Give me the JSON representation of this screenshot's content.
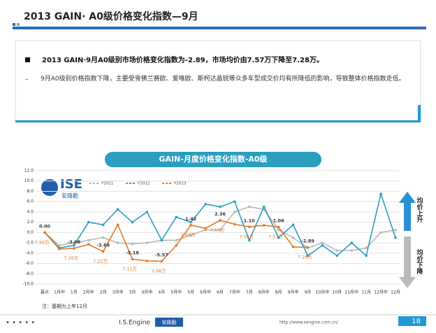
{
  "header": {
    "title": "2013 GAIN· A0级价格变化指数—9月"
  },
  "summary": {
    "headline": "2013 GAIN·9月A0级别市场价格变化指数为-2.89，市场均价由7.57万下降至7.28万。",
    "detail": "9月A0级别价格指数下降，主要受雪佛兰赛欧、爱唯欧、斯柯达晶锐等众多车型成交价均有所降低的影响，导致整体价格指数走低。"
  },
  "chart_data": {
    "type": "line",
    "title": "GAIN-月度价格变化指数-A0级",
    "categories": [
      "基点",
      "1月中",
      "1月",
      "2月中",
      "2月",
      "3月中",
      "3月",
      "4月中",
      "4月",
      "5月中",
      "5月",
      "6月中",
      "6月",
      "7月中",
      "7月",
      "8月中",
      "8月",
      "9月中",
      "9月",
      "10月中",
      "10月",
      "11月中",
      "11月",
      "12月中",
      "12月"
    ],
    "series": [
      {
        "name": "Y2011",
        "color": "#b8b8b8",
        "values": [
          0,
          -2.5,
          -2.0,
          -1.5,
          -1.0,
          -2.0,
          -2.2,
          -2.0,
          -1.5,
          -1.5,
          -0.5,
          0.5,
          0.5,
          4.0,
          5.0,
          4.5,
          0.5,
          -1.0,
          -3.0,
          -2.0,
          -3.5,
          -3.5,
          -3.0,
          0,
          0.5
        ]
      },
      {
        "name": "Y2012",
        "color": "#2a9fc0",
        "values": [
          0,
          -3.0,
          -2.5,
          2.0,
          1.5,
          4.5,
          2.0,
          4.0,
          -1.5,
          3.0,
          2.0,
          5.5,
          5.0,
          6.0,
          -1.5,
          5.0,
          -1.0,
          1.5,
          -4.5,
          -2.5,
          -4.5,
          -2.0,
          -4.5,
          7.5,
          -1.0
        ]
      },
      {
        "name": "Y2013",
        "color": "#e07b2a",
        "values": [
          0,
          -3.2,
          -3.08,
          -2.3,
          -3.69,
          1.5,
          -5.18,
          -5.5,
          -5.57,
          -2.5,
          1.42,
          0.8,
          2.36,
          1.6,
          1.1,
          1.4,
          1.06,
          -2.8,
          -2.89,
          null,
          null,
          null,
          null,
          null,
          null
        ],
        "value_labels": [
          "0.00",
          null,
          "-3.08",
          null,
          "-3.69",
          null,
          "-5.18",
          null,
          "-5.57",
          null,
          "1.42",
          null,
          "2.36",
          null,
          "1.10",
          null,
          "1.06",
          null,
          "-2.89",
          null,
          null,
          null,
          null,
          null,
          null
        ],
        "price_labels": [
          "7.50万",
          null,
          "7.26万",
          null,
          "7.22万",
          null,
          "7.11万",
          null,
          "7.08万",
          null,
          "7.60万",
          null,
          "7.67万",
          null,
          "7.58万",
          null,
          "7.57万",
          null,
          "7.28万",
          null,
          null,
          null,
          null,
          null,
          null
        ]
      }
    ],
    "ylim": [
      -10,
      12
    ],
    "yticks": [
      {
        "value": 12,
        "label": "12.0"
      },
      {
        "value": 10,
        "label": "10.0"
      },
      {
        "value": 8,
        "label": "8.0"
      },
      {
        "value": 6,
        "label": "6.0"
      },
      {
        "value": 4,
        "label": "4.0"
      },
      {
        "value": 2,
        "label": "2.0"
      },
      {
        "value": 0,
        "label": "0.0"
      },
      {
        "value": -2,
        "label": "-2.0"
      },
      {
        "value": -4,
        "label": "-4.0"
      },
      {
        "value": -6,
        "label": "-6.0"
      },
      {
        "value": -8,
        "label": "-8.0"
      },
      {
        "value": -10,
        "label": "-10.0"
      }
    ],
    "grid": true,
    "up_label": "均价上升",
    "down_label": "均价下降",
    "note": "注：基期为上年12月",
    "logo": "ISE",
    "logo_sub": "安路勤"
  },
  "footer": {
    "brand": "I.S.Engine",
    "brand_sub": "安路勤",
    "url": "http://www.sengine.com.cn/",
    "page": "18"
  }
}
